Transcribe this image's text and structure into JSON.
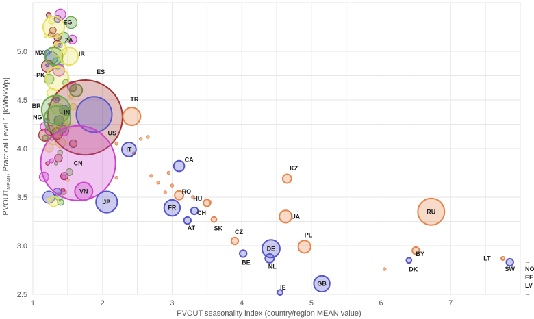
{
  "chart_data": {
    "type": "scatter",
    "subtype": "bubble",
    "title": "",
    "xlabel": "PVOUT seasonality index (country/region MEAN value)",
    "ylabel_parts": [
      "PVOUT",
      "MEAN",
      ", Practical Level 1  [kWh/kWp]"
    ],
    "xlim": [
      1,
      8
    ],
    "ylim": [
      2.5,
      5.5
    ],
    "x_ticks": [
      "1",
      "2",
      "3",
      "4",
      "5",
      "6",
      "7"
    ],
    "y_ticks": [
      "2.5",
      "3.0",
      "3.5",
      "4.0",
      "4.5",
      "5.0"
    ],
    "grid": true,
    "groups": [
      {
        "name": "yellow",
        "color": "#e8e05a"
      },
      {
        "name": "green",
        "color": "#6aa84f"
      },
      {
        "name": "dark-red",
        "color": "#a33333"
      },
      {
        "name": "magenta",
        "color": "#cc44cc"
      },
      {
        "name": "blue",
        "color": "#5555cc"
      },
      {
        "name": "orange",
        "color": "#e8844a"
      }
    ],
    "points": [
      {
        "label": "EG",
        "x": 1.3,
        "y": 5.25,
        "size": 12,
        "group": "yellow"
      },
      {
        "label": "ZA",
        "x": 1.38,
        "y": 5.02,
        "size": 8,
        "group": "yellow"
      },
      {
        "label": "MX",
        "x": 1.3,
        "y": 4.95,
        "size": 10,
        "group": "green"
      },
      {
        "label": "IR",
        "x": 1.52,
        "y": 4.95,
        "size": 10,
        "group": "yellow"
      },
      {
        "label": "PK",
        "x": 1.35,
        "y": 4.72,
        "size": 13,
        "group": "yellow"
      },
      {
        "label": "ES",
        "x": 1.62,
        "y": 4.6,
        "size": 7,
        "group": "green"
      },
      {
        "label": "IN",
        "x": 1.75,
        "y": 4.32,
        "size": 42,
        "group": "dark-red"
      },
      {
        "label": "BR",
        "x": 1.33,
        "y": 4.4,
        "size": 16,
        "group": "green"
      },
      {
        "label": "NG",
        "x": 1.35,
        "y": 4.3,
        "size": 15,
        "group": "green"
      },
      {
        "label": "TR",
        "x": 2.42,
        "y": 4.33,
        "size": 10,
        "group": "orange"
      },
      {
        "label": "US",
        "x": 1.88,
        "y": 4.35,
        "size": 20,
        "group": "blue"
      },
      {
        "label": "IT",
        "x": 2.38,
        "y": 3.99,
        "size": 8,
        "group": "blue"
      },
      {
        "label": "CN",
        "x": 1.65,
        "y": 3.85,
        "size": 42,
        "group": "magenta"
      },
      {
        "label": "CA",
        "x": 3.1,
        "y": 3.82,
        "size": 6,
        "group": "blue"
      },
      {
        "label": "KZ",
        "x": 4.65,
        "y": 3.69,
        "size": 5,
        "group": "orange"
      },
      {
        "label": "VN",
        "x": 1.73,
        "y": 3.56,
        "size": 10,
        "group": "magenta"
      },
      {
        "label": "JP",
        "x": 2.06,
        "y": 3.45,
        "size": 12,
        "group": "blue"
      },
      {
        "label": "RO",
        "x": 3.1,
        "y": 3.52,
        "size": 5,
        "group": "orange"
      },
      {
        "label": "HU",
        "x": 3.5,
        "y": 3.44,
        "size": 4,
        "group": "orange"
      },
      {
        "label": "FR",
        "x": 3.0,
        "y": 3.39,
        "size": 9,
        "group": "blue"
      },
      {
        "label": "CH",
        "x": 3.32,
        "y": 3.36,
        "size": 4,
        "group": "blue"
      },
      {
        "label": "UA",
        "x": 4.63,
        "y": 3.3,
        "size": 7,
        "group": "orange"
      },
      {
        "label": "RU",
        "x": 6.72,
        "y": 3.35,
        "size": 15,
        "group": "orange"
      },
      {
        "label": "AT",
        "x": 3.22,
        "y": 3.26,
        "size": 4,
        "group": "blue"
      },
      {
        "label": "SK",
        "x": 3.6,
        "y": 3.27,
        "size": 3,
        "group": "orange"
      },
      {
        "label": "CZ",
        "x": 3.9,
        "y": 3.05,
        "size": 4,
        "group": "orange"
      },
      {
        "label": "PL",
        "x": 4.9,
        "y": 2.99,
        "size": 7,
        "group": "orange"
      },
      {
        "label": "DE",
        "x": 4.42,
        "y": 2.97,
        "size": 10,
        "group": "blue"
      },
      {
        "label": "BY",
        "x": 6.5,
        "y": 2.95,
        "size": 4,
        "group": "orange"
      },
      {
        "label": "BE",
        "x": 4.02,
        "y": 2.92,
        "size": 4,
        "group": "blue"
      },
      {
        "label": "NL",
        "x": 4.4,
        "y": 2.87,
        "size": 5,
        "group": "blue"
      },
      {
        "label": "LT",
        "x": 7.75,
        "y": 2.87,
        "size": 2,
        "group": "orange"
      },
      {
        "label": "DK",
        "x": 6.4,
        "y": 2.85,
        "size": 3,
        "group": "blue"
      },
      {
        "label": "SW",
        "x": 7.85,
        "y": 2.83,
        "size": 4,
        "group": "blue"
      },
      {
        "label": "GB",
        "x": 5.15,
        "y": 2.61,
        "size": 9,
        "group": "blue"
      },
      {
        "label": "IE",
        "x": 4.55,
        "y": 2.52,
        "size": 3,
        "group": "blue"
      }
    ],
    "offscale_labels": [
      "NO",
      "EE",
      "LV"
    ]
  }
}
